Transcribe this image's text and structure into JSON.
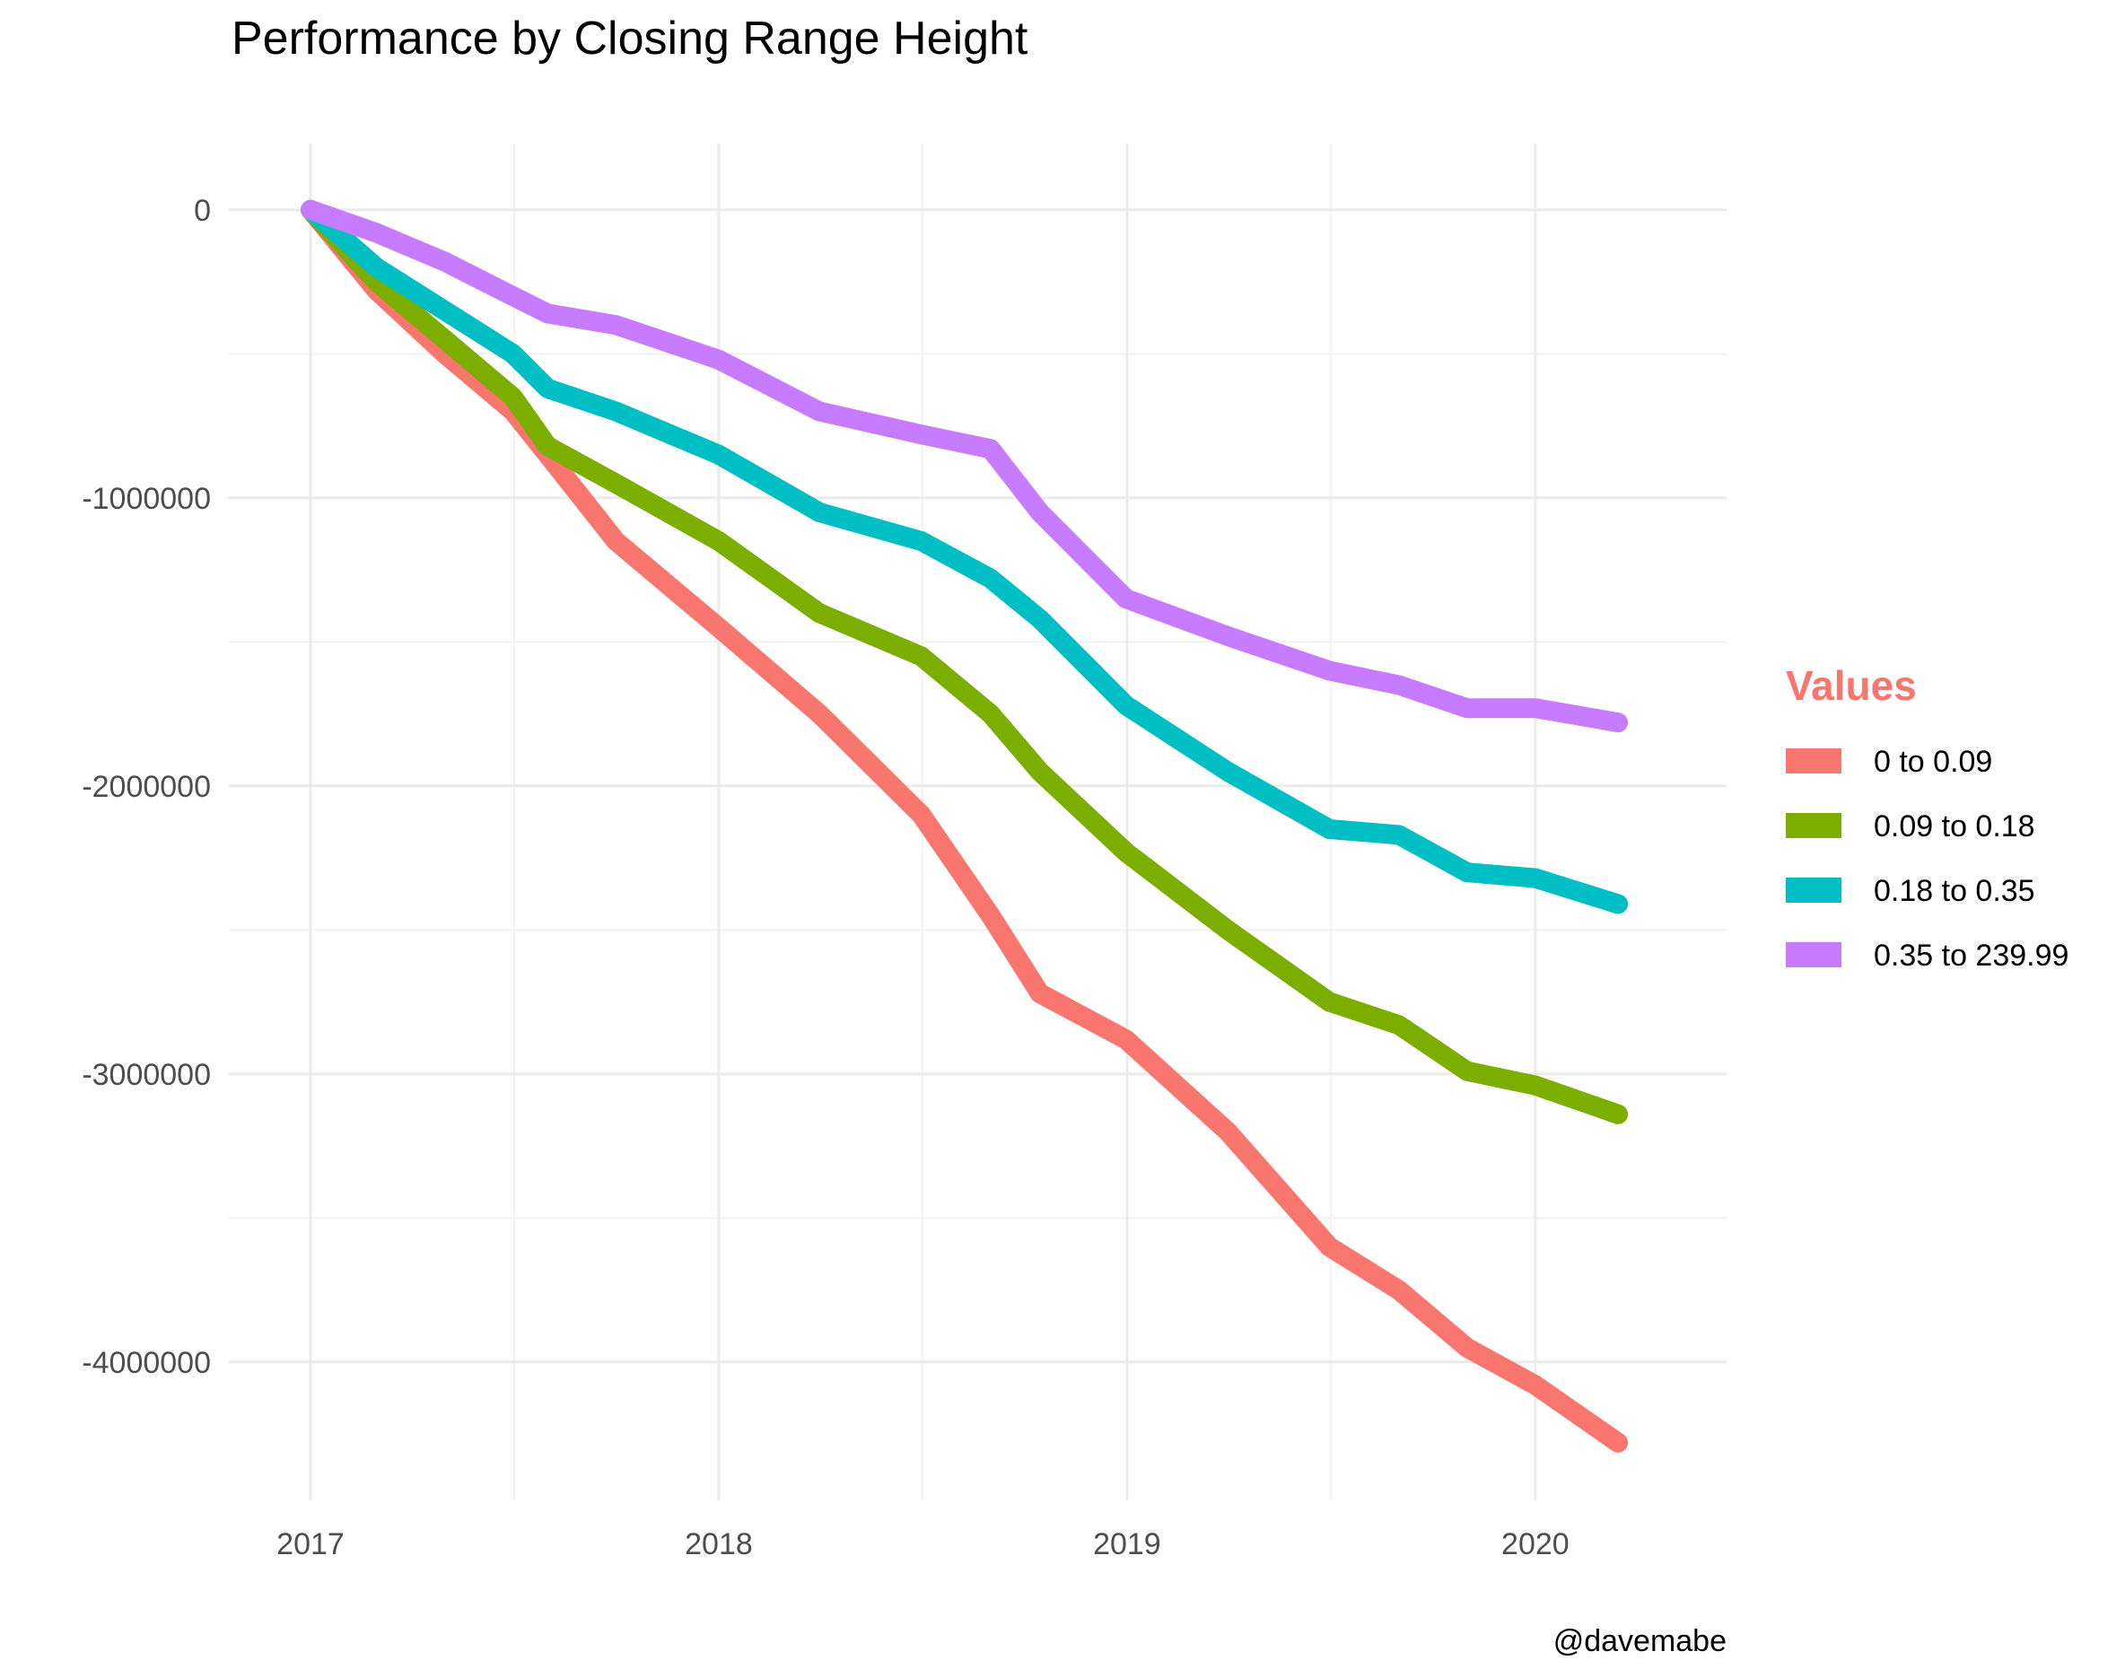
{
  "chart_data": {
    "type": "line",
    "title": "Performance by Closing Range Height",
    "xlabel": "",
    "ylabel": "",
    "caption": "@davemabe",
    "grid": true,
    "x_ticks": [
      "2017",
      "2018",
      "2019",
      "2020"
    ],
    "y_ticks": [
      0,
      -1000000,
      -2000000,
      -3000000,
      -4000000
    ],
    "y_tick_labels": [
      "0",
      "-1000000",
      "-2000000",
      "-3000000",
      "-4000000"
    ],
    "xlim": [
      "2016-10-20",
      "2020-06-20"
    ],
    "ylim": [
      -4480000,
      230000
    ],
    "legend": {
      "title": "Values",
      "title_color": "#F8766D",
      "position": "right"
    },
    "series": [
      {
        "name": "0 to 0.09",
        "color": "#F8766D",
        "points": [
          [
            "2017-01-01",
            0
          ],
          [
            "2017-03-01",
            -280000
          ],
          [
            "2017-05-01",
            -500000
          ],
          [
            "2017-07-01",
            -700000
          ],
          [
            "2017-08-01",
            -850000
          ],
          [
            "2017-10-01",
            -1150000
          ],
          [
            "2018-01-01",
            -1450000
          ],
          [
            "2018-04-01",
            -1750000
          ],
          [
            "2018-07-01",
            -2100000
          ],
          [
            "2018-09-01",
            -2450000
          ],
          [
            "2018-10-15",
            -2720000
          ],
          [
            "2018-12-31",
            -2880000
          ],
          [
            "2019-04-01",
            -3200000
          ],
          [
            "2019-07-01",
            -3600000
          ],
          [
            "2019-09-01",
            -3750000
          ],
          [
            "2019-11-01",
            -3950000
          ],
          [
            "2020-01-01",
            -4080000
          ],
          [
            "2020-03-15",
            -4280000
          ]
        ]
      },
      {
        "name": "0.09 to 0.18",
        "color": "#7CAE00",
        "points": [
          [
            "2017-01-01",
            0
          ],
          [
            "2017-03-01",
            -250000
          ],
          [
            "2017-05-01",
            -450000
          ],
          [
            "2017-07-01",
            -650000
          ],
          [
            "2017-08-01",
            -820000
          ],
          [
            "2017-10-01",
            -950000
          ],
          [
            "2018-01-01",
            -1150000
          ],
          [
            "2018-04-01",
            -1400000
          ],
          [
            "2018-07-01",
            -1550000
          ],
          [
            "2018-09-01",
            -1750000
          ],
          [
            "2018-10-15",
            -1950000
          ],
          [
            "2018-12-31",
            -2230000
          ],
          [
            "2019-04-01",
            -2500000
          ],
          [
            "2019-07-01",
            -2750000
          ],
          [
            "2019-09-01",
            -2830000
          ],
          [
            "2019-11-01",
            -2990000
          ],
          [
            "2020-01-01",
            -3040000
          ],
          [
            "2020-03-15",
            -3140000
          ]
        ]
      },
      {
        "name": "0.18 to 0.35",
        "color": "#00BFC4",
        "points": [
          [
            "2017-01-01",
            0
          ],
          [
            "2017-03-01",
            -200000
          ],
          [
            "2017-05-01",
            -350000
          ],
          [
            "2017-07-01",
            -500000
          ],
          [
            "2017-08-01",
            -620000
          ],
          [
            "2017-10-01",
            -700000
          ],
          [
            "2018-01-01",
            -850000
          ],
          [
            "2018-04-01",
            -1050000
          ],
          [
            "2018-07-01",
            -1150000
          ],
          [
            "2018-09-01",
            -1280000
          ],
          [
            "2018-10-15",
            -1420000
          ],
          [
            "2018-12-31",
            -1720000
          ],
          [
            "2019-04-01",
            -1950000
          ],
          [
            "2019-07-01",
            -2150000
          ],
          [
            "2019-09-01",
            -2170000
          ],
          [
            "2019-11-01",
            -2300000
          ],
          [
            "2020-01-01",
            -2320000
          ],
          [
            "2020-03-15",
            -2410000
          ]
        ]
      },
      {
        "name": "0.35 to 239.99",
        "color": "#C77CFF",
        "points": [
          [
            "2017-01-01",
            0
          ],
          [
            "2017-03-01",
            -80000
          ],
          [
            "2017-05-01",
            -180000
          ],
          [
            "2017-07-01",
            -300000
          ],
          [
            "2017-08-01",
            -360000
          ],
          [
            "2017-10-01",
            -400000
          ],
          [
            "2018-01-01",
            -520000
          ],
          [
            "2018-04-01",
            -700000
          ],
          [
            "2018-07-01",
            -780000
          ],
          [
            "2018-09-01",
            -830000
          ],
          [
            "2018-10-15",
            -1050000
          ],
          [
            "2018-12-31",
            -1350000
          ],
          [
            "2019-04-01",
            -1480000
          ],
          [
            "2019-07-01",
            -1600000
          ],
          [
            "2019-09-01",
            -1650000
          ],
          [
            "2019-11-01",
            -1730000
          ],
          [
            "2020-01-01",
            -1730000
          ],
          [
            "2020-03-15",
            -1780000
          ]
        ]
      }
    ]
  }
}
